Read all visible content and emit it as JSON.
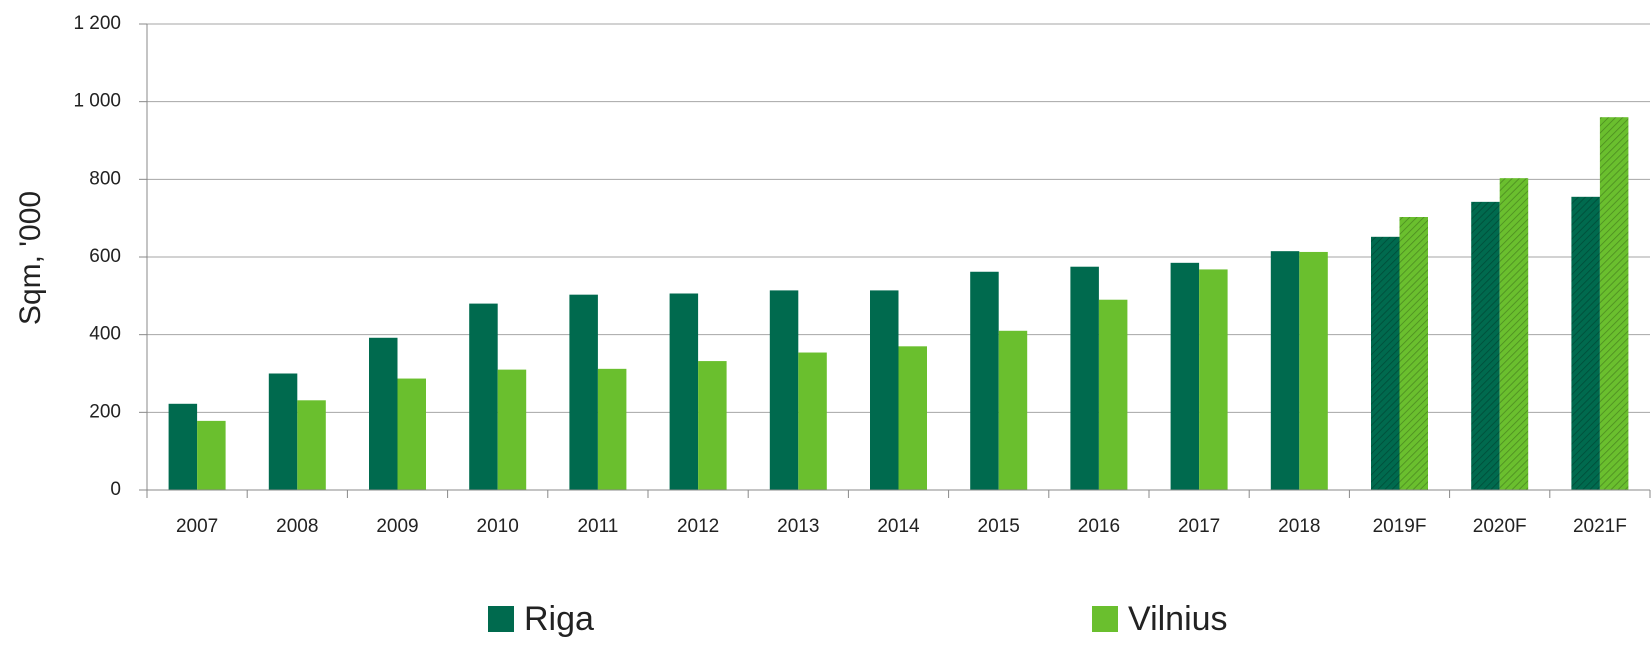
{
  "chart_data": {
    "type": "bar",
    "y_label": "Sqm, '000",
    "categories": [
      "2007",
      "2008",
      "2009",
      "2010",
      "2011",
      "2012",
      "2013",
      "2014",
      "2015",
      "2016",
      "2017",
      "2018",
      "2019F",
      "2020F",
      "2021F"
    ],
    "hatched": [
      false,
      false,
      false,
      false,
      false,
      false,
      false,
      false,
      false,
      false,
      false,
      false,
      true,
      true,
      true
    ],
    "series": [
      {
        "name": "Riga",
        "color": "#006a4e",
        "values": [
          222,
          300,
          392,
          480,
          503,
          506,
          514,
          514,
          562,
          575,
          585,
          615,
          652,
          742,
          755
        ]
      },
      {
        "name": "Vilnius",
        "color": "#6abf2e",
        "values": [
          178,
          231,
          287,
          310,
          312,
          332,
          354,
          370,
          410,
          490,
          568,
          613,
          703,
          803,
          960
        ]
      }
    ],
    "ylim": [
      0,
      1200
    ],
    "yticks": [
      0,
      200,
      400,
      600,
      800,
      {
        "value": 1000,
        "label": "1 000"
      },
      {
        "value": 1200,
        "label": "1 200"
      }
    ],
    "grid": true
  }
}
